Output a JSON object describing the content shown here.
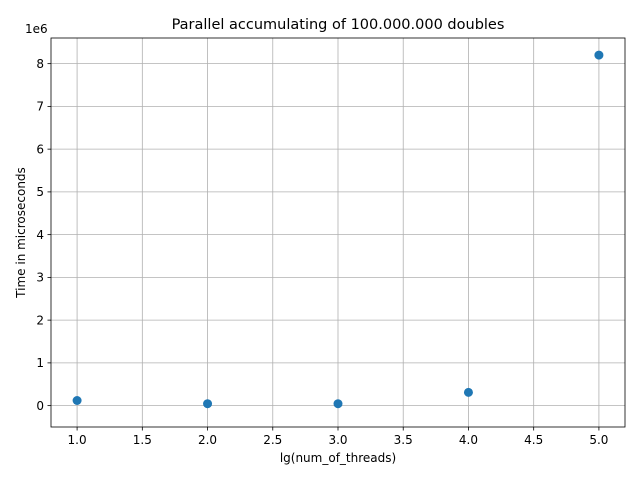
{
  "chart_data": {
    "type": "scatter",
    "title": "Parallel accumulating of 100.000.000 doubles",
    "xlabel": "lg(num_of_threads)",
    "ylabel": "Time in microseconds",
    "y_offset_text": "1e6",
    "y_scale_factor": 1000000,
    "xlim": [
      0.8,
      5.2
    ],
    "ylim": [
      -500000,
      8600000
    ],
    "x_ticks": [
      1.0,
      1.5,
      2.0,
      2.5,
      3.0,
      3.5,
      4.0,
      4.5,
      5.0
    ],
    "x_tick_labels": [
      "1.0",
      "1.5",
      "2.0",
      "2.5",
      "3.0",
      "3.5",
      "4.0",
      "4.5",
      "5.0"
    ],
    "y_ticks": [
      0,
      1000000,
      2000000,
      3000000,
      4000000,
      5000000,
      6000000,
      7000000,
      8000000
    ],
    "y_tick_labels": [
      "0",
      "1",
      "2",
      "3",
      "4",
      "5",
      "6",
      "7",
      "8"
    ],
    "grid": true,
    "marker_color": "#1f77b4",
    "series": [
      {
        "x": [
          1,
          2,
          3,
          4,
          5
        ],
        "y": [
          120000,
          45000,
          45000,
          310000,
          8200000
        ]
      }
    ]
  }
}
